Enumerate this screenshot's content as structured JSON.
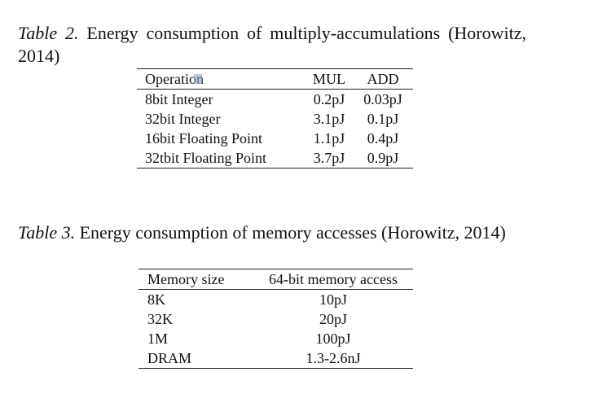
{
  "table2": {
    "caption_label": "Table 2.",
    "caption_text": "Energy consumption of multiply-accumulations (Horowitz, 2014)",
    "columns": [
      "Operation",
      "MUL",
      "ADD"
    ],
    "rows": [
      [
        "8bit Integer",
        "0.2pJ",
        "0.03pJ"
      ],
      [
        "32bit Integer",
        "3.1pJ",
        "0.1pJ"
      ],
      [
        "16bit Floating Point",
        "1.1pJ",
        "0.4pJ"
      ],
      [
        "32tbit Floating Point",
        "3.7pJ",
        "0.9pJ"
      ]
    ]
  },
  "table3": {
    "caption_label": "Table 3.",
    "caption_text": "Energy consumption of memory accesses (Horowitz, 2014)",
    "columns": [
      "Memory size",
      "64-bit memory access"
    ],
    "rows": [
      [
        "8K",
        "10pJ"
      ],
      [
        "32K",
        "20pJ"
      ],
      [
        "1M",
        "100pJ"
      ],
      [
        "DRAM",
        "1.3-2.6nJ"
      ]
    ]
  }
}
